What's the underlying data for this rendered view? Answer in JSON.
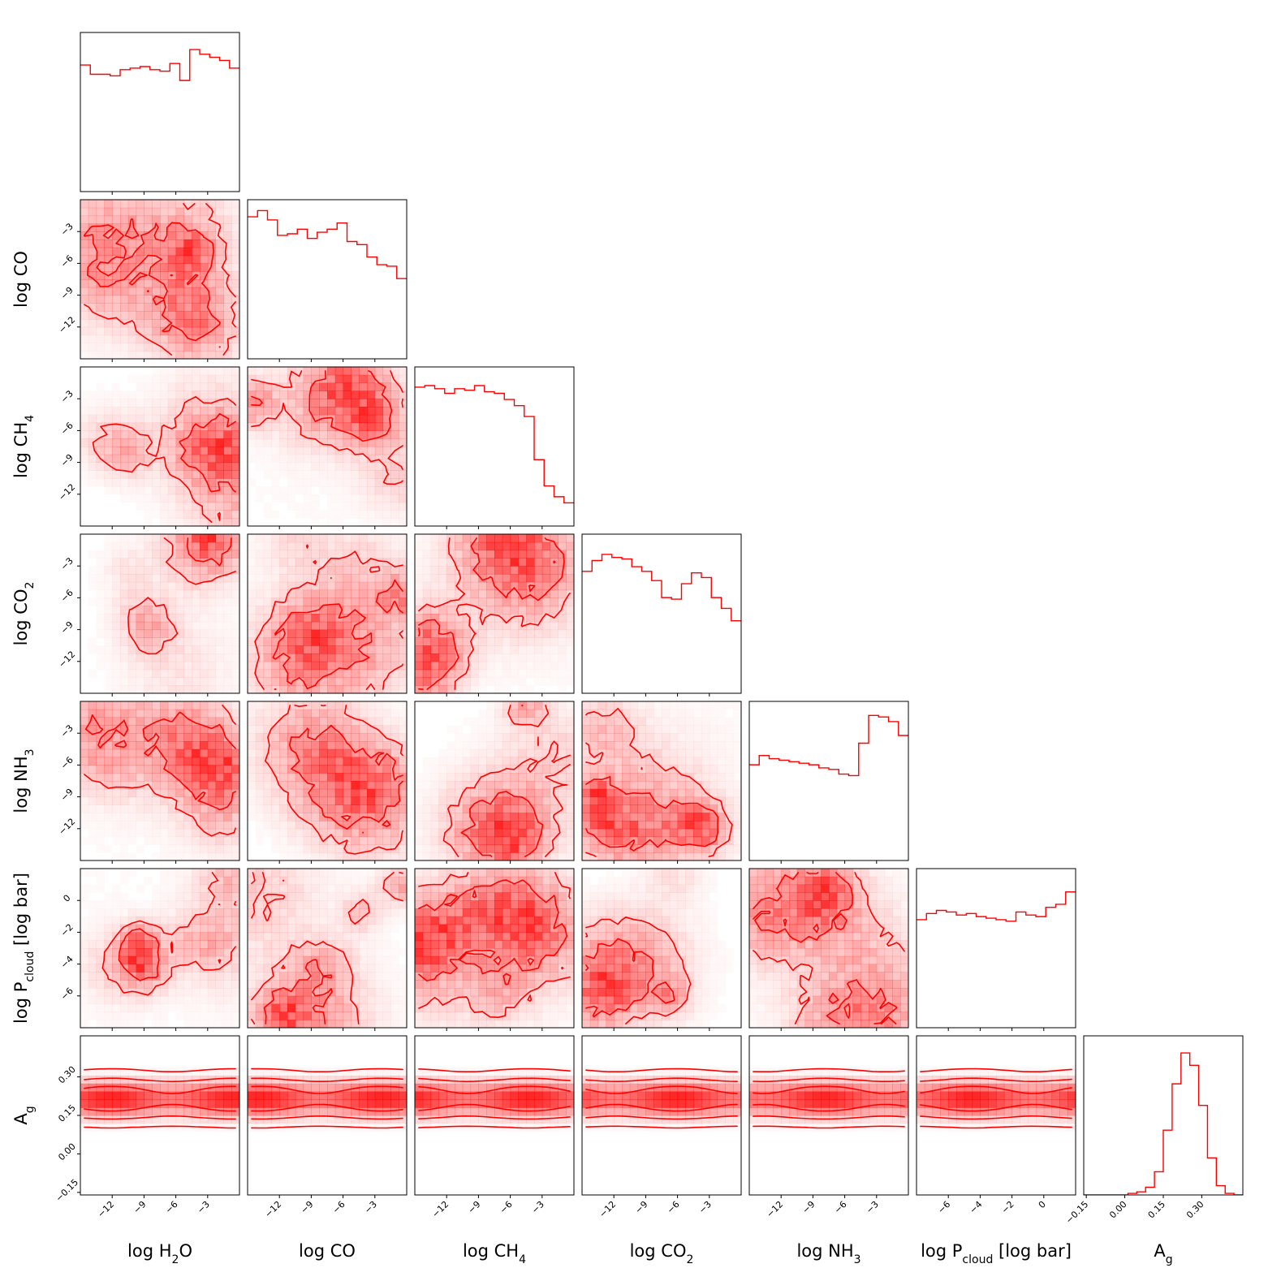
{
  "chart_data": {
    "type": "corner",
    "color": "#ff0000",
    "parameters": [
      {
        "key": "h2o",
        "label": {
          "main": "log H",
          "sub": "2",
          "after": "O"
        },
        "range": [
          -15,
          0
        ],
        "ticks": [
          -12,
          -9,
          -6,
          -3
        ],
        "tick_labels": [
          "−12",
          "−9",
          "−6",
          "−3"
        ]
      },
      {
        "key": "co",
        "label": {
          "main": "log CO",
          "sub": "",
          "after": ""
        },
        "range": [
          -15,
          0
        ],
        "ticks": [
          -12,
          -9,
          -6,
          -3
        ],
        "tick_labels": [
          "−12",
          "−9",
          "−6",
          "−3"
        ]
      },
      {
        "key": "ch4",
        "label": {
          "main": "log CH",
          "sub": "4",
          "after": ""
        },
        "range": [
          -15,
          0
        ],
        "ticks": [
          -12,
          -9,
          -6,
          -3
        ],
        "tick_labels": [
          "−12",
          "−9",
          "−6",
          "−3"
        ]
      },
      {
        "key": "co2",
        "label": {
          "main": "log CO",
          "sub": "2",
          "after": ""
        },
        "range": [
          -15,
          0
        ],
        "ticks": [
          -12,
          -9,
          -6,
          -3
        ],
        "tick_labels": [
          "−12",
          "−9",
          "−6",
          "−3"
        ]
      },
      {
        "key": "nh3",
        "label": {
          "main": "log NH",
          "sub": "3",
          "after": ""
        },
        "range": [
          -15,
          0
        ],
        "ticks": [
          -12,
          -9,
          -6,
          -3
        ],
        "tick_labels": [
          "−12",
          "−9",
          "−6",
          "−3"
        ]
      },
      {
        "key": "pcloud",
        "label": {
          "main": "log P",
          "sub": "cloud",
          "after": " [log  bar]"
        },
        "range": [
          -8,
          2
        ],
        "ticks": [
          -6,
          -4,
          -2,
          0
        ],
        "tick_labels": [
          "−6",
          "−4",
          "−2",
          "0"
        ]
      },
      {
        "key": "ag",
        "label": {
          "main": "A",
          "sub": "g",
          "after": ""
        },
        "range": [
          -0.16,
          0.46
        ],
        "ticks": [
          -0.15,
          0.0,
          0.15,
          0.3
        ],
        "tick_labels": [
          "−0.15",
          "0.00",
          "0.15",
          "0.30"
        ]
      }
    ],
    "histograms": {
      "h2o": [
        0.82,
        0.76,
        0.76,
        0.75,
        0.79,
        0.8,
        0.81,
        0.79,
        0.78,
        0.83,
        0.72,
        0.92,
        0.89,
        0.87,
        0.85,
        0.8
      ],
      "co": [
        0.92,
        0.96,
        0.9,
        0.8,
        0.81,
        0.84,
        0.78,
        0.82,
        0.84,
        0.88,
        0.76,
        0.74,
        0.66,
        0.61,
        0.6,
        0.52
      ],
      "ch4": [
        0.9,
        0.91,
        0.89,
        0.86,
        0.89,
        0.88,
        0.91,
        0.87,
        0.86,
        0.82,
        0.78,
        0.71,
        0.43,
        0.26,
        0.19,
        0.15
      ],
      "co2": [
        0.79,
        0.86,
        0.9,
        0.88,
        0.87,
        0.82,
        0.79,
        0.73,
        0.62,
        0.61,
        0.71,
        0.78,
        0.75,
        0.62,
        0.55,
        0.47
      ],
      "nh3": [
        0.62,
        0.68,
        0.66,
        0.65,
        0.64,
        0.63,
        0.62,
        0.6,
        0.59,
        0.56,
        0.55,
        0.76,
        0.94,
        0.93,
        0.9,
        0.81
      ],
      "pcloud": [
        0.7,
        0.74,
        0.76,
        0.75,
        0.73,
        0.74,
        0.72,
        0.71,
        0.7,
        0.69,
        0.75,
        0.73,
        0.72,
        0.78,
        0.8,
        0.88
      ],
      "ag": [
        0.0,
        0.0,
        0.0,
        0.0,
        0.0,
        0.01,
        0.02,
        0.05,
        0.15,
        0.42,
        0.72,
        0.92,
        0.84,
        0.58,
        0.24,
        0.06,
        0.01,
        0.0
      ]
    },
    "ag_posterior": {
      "mean": 0.215,
      "sigma": 0.05
    }
  }
}
